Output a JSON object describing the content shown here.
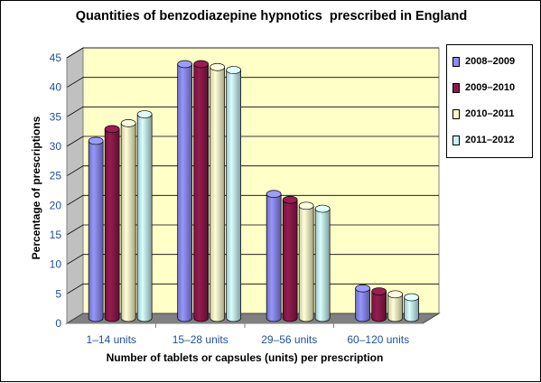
{
  "chart_data": {
    "type": "bar",
    "title": "Quantities of benzodiazepine hypnotics  prescribed in England",
    "xlabel": "Number of tablets or capsules (units) per prescription",
    "ylabel": "Percentage of prescriptions",
    "categories": [
      "1–14 units",
      "15–28 units",
      "29–56 units",
      "60–120 units"
    ],
    "yticks": [
      "0",
      "5",
      "10",
      "15",
      "20",
      "25",
      "30",
      "35",
      "40",
      "45"
    ],
    "ylim": [
      0,
      45
    ],
    "grid": true,
    "legend_position": "right",
    "series": [
      {
        "name": "2008–2009",
        "values": [
          30,
          43,
          21,
          5
        ],
        "color": "#8b8bf0"
      },
      {
        "name": "2009–2010",
        "values": [
          32,
          43,
          20,
          4.5
        ],
        "color": "#8b1a4a"
      },
      {
        "name": "2010–2011",
        "values": [
          33,
          42.5,
          19,
          4
        ],
        "color": "#fcfcc8"
      },
      {
        "name": "2011–2012",
        "values": [
          34.5,
          42,
          18.5,
          3.5
        ],
        "color": "#c8f0f5"
      }
    ]
  }
}
